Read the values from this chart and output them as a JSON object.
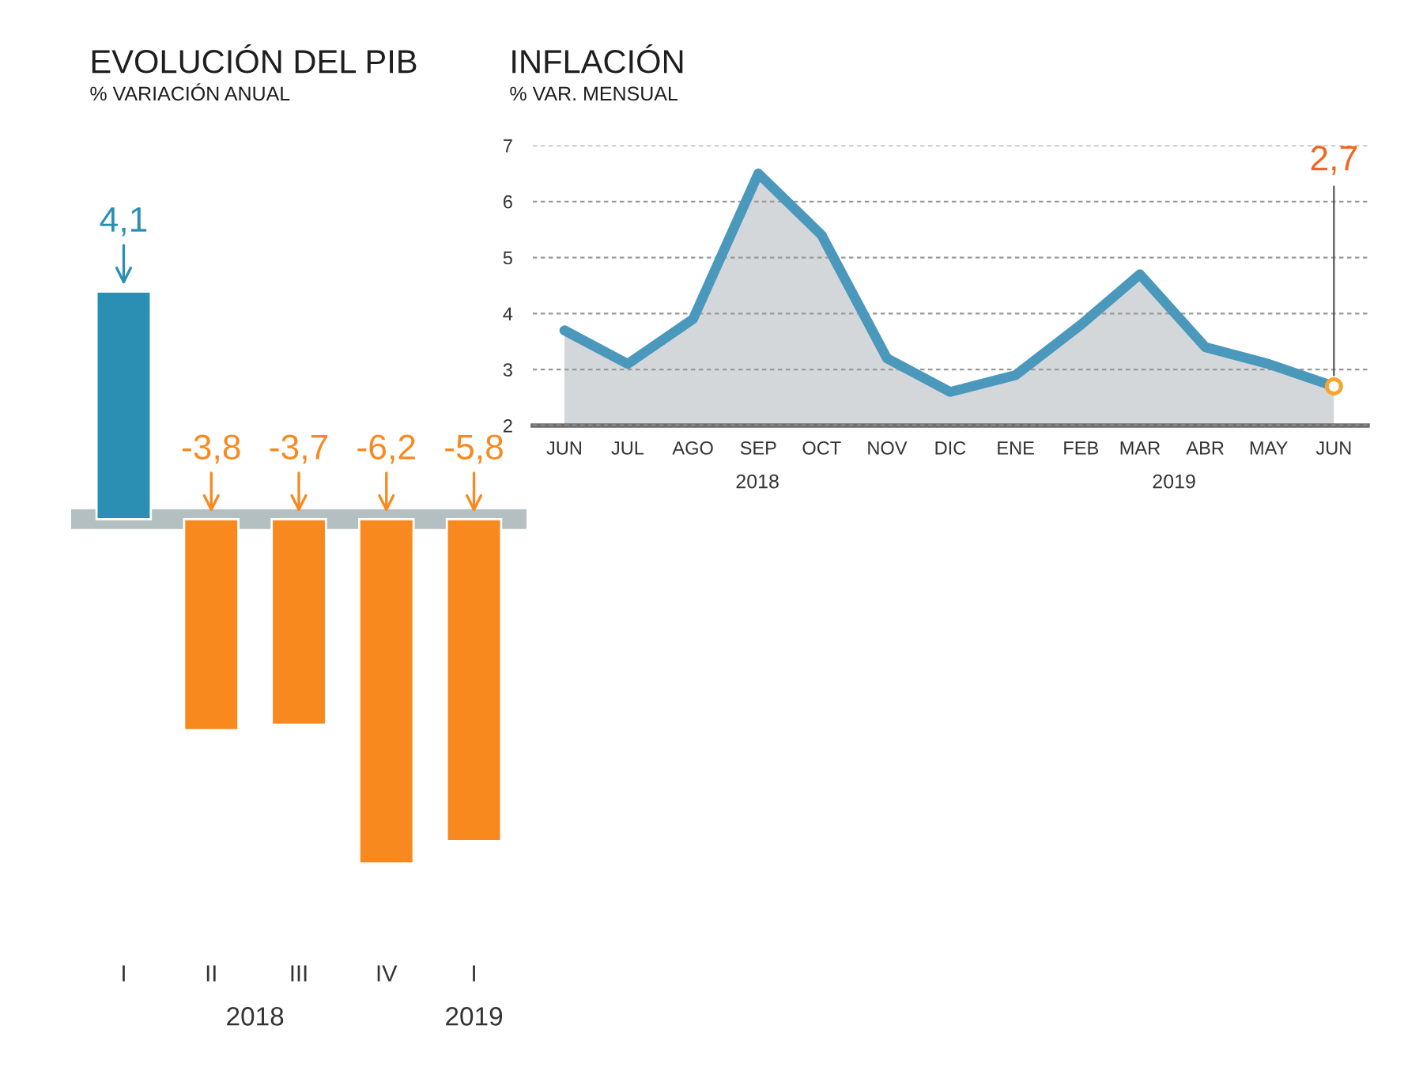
{
  "chart_data": [
    {
      "type": "bar",
      "title": "EVOLUCIÓN DEL PIB",
      "subtitle": "% VARIACIÓN ANUAL",
      "categories": [
        "I",
        "II",
        "III",
        "IV",
        "I"
      ],
      "values": [
        4.1,
        -3.8,
        -3.7,
        -6.2,
        -5.8
      ],
      "value_labels": [
        "4,1",
        "-3,8",
        "-3,7",
        "-6,2",
        "-5,8"
      ],
      "colors": [
        "#2b8fb3",
        "#f7891f",
        "#f7891f",
        "#f7891f",
        "#f7891f"
      ],
      "tick_labels": "x",
      "annotations": [
        "2018",
        "2019"
      ]
    },
    {
      "type": "area",
      "title": "INFLACIÓN",
      "subtitle": "% VAR. MENSUAL",
      "x": [
        "2018-06",
        "2018-07",
        "2018-08",
        "2018-09",
        "2018-10",
        "2018-11",
        "2018-12",
        "2019-01",
        "2019-02",
        "2019-03",
        "2019-04",
        "2019-05",
        "2019-06"
      ],
      "xlim": [
        "2018-05-17",
        "2019-06-17"
      ],
      "xticks": [
        {
          "value": "2018-06",
          "label": "JUN"
        },
        {
          "value": "2018-07",
          "label": "JUL"
        },
        {
          "value": "2018-08",
          "label": "AGO"
        },
        {
          "value": "2018-09",
          "label": "SEP"
        },
        {
          "value": "2018-10",
          "label": "OCT"
        },
        {
          "value": "2018-11",
          "label": "NOV"
        },
        {
          "value": "2018-12",
          "label": "DIC"
        },
        {
          "value": "2019-01",
          "label": "ENE"
        },
        {
          "value": "2019-02",
          "label": "FEB"
        },
        {
          "value": "2019-03",
          "label": "MAR"
        },
        {
          "value": "2019-04",
          "label": "ABR"
        },
        {
          "value": "2019-05",
          "label": "MAY"
        },
        {
          "value": "2019-06",
          "label": "JUN"
        }
      ],
      "ylim": [
        2,
        7
      ],
      "yticks": [
        2,
        3,
        4,
        5,
        6,
        7
      ],
      "grid": "y",
      "series": [
        {
          "color": "#4a98bc",
          "values": [
            3.7,
            3.1,
            3.9,
            6.5,
            5.4,
            3.2,
            2.6,
            2.9,
            3.8,
            4.7,
            3.4,
            3.1,
            2.7
          ]
        },
        {
          "type": "scatter",
          "x": [
            "2019-06"
          ],
          "color": "#f7a531",
          "values": [
            2.7
          ]
        }
      ],
      "annotations": [
        "2018",
        "2019",
        {
          "text": "2,7",
          "x": "2019-06",
          "y": 2.7
        }
      ]
    }
  ]
}
